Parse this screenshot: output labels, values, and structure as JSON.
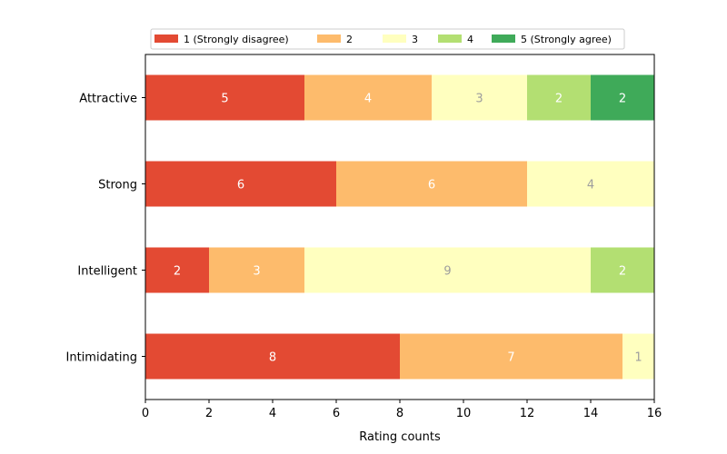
{
  "chart_data": {
    "type": "bar",
    "orientation": "horizontal",
    "stacked": true,
    "categories": [
      "Attractive",
      "Strong",
      "Intelligent",
      "Intimidating"
    ],
    "series": [
      {
        "name": "1 (Strongly disagree)",
        "color": "#e34a33",
        "values": [
          5,
          6,
          2,
          8
        ]
      },
      {
        "name": "2",
        "color": "#fdbb6c",
        "values": [
          4,
          6,
          3,
          7
        ]
      },
      {
        "name": "3",
        "color": "#ffffbf",
        "values": [
          3,
          4,
          9,
          1
        ]
      },
      {
        "name": "4",
        "color": "#b3df72",
        "values": [
          2,
          0,
          2,
          0
        ]
      },
      {
        "name": "5 (Strongly agree)",
        "color": "#3faa59",
        "values": [
          2,
          0,
          0,
          0
        ]
      }
    ],
    "xlabel": "Rating counts",
    "xlim": [
      0,
      16
    ],
    "xticks": [
      0,
      2,
      4,
      6,
      8,
      10,
      12,
      14,
      16
    ],
    "legend_position": "top",
    "grid": false
  }
}
